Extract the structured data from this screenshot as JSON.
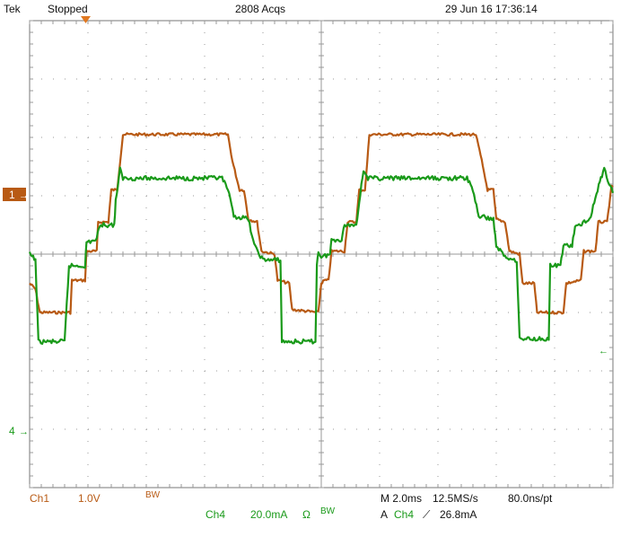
{
  "header": {
    "brand": "Tek",
    "state": "Stopped",
    "acqs": "2808 Acqs",
    "datetime": "29 Jun 16 17:36:14"
  },
  "footer": {
    "ch1_label": "Ch1",
    "ch1_scale": "1.0V",
    "ch1_bw": "BW",
    "ch4_label": "Ch4",
    "ch4_scale": "20.0mA",
    "ch4_term": "Ω",
    "ch4_bw": "BW",
    "timebase": "M 2.0ms",
    "sample_rate": "12.5MS/s",
    "record": "80.0ns/pt",
    "trigger_mode": "A",
    "trigger_src": "Ch4",
    "trigger_slope": "⟋",
    "trigger_level": "26.8mA"
  },
  "colors": {
    "ch1": "#b85a14",
    "ch4": "#1a9a1a",
    "grid": "#999999",
    "frame": "#777777"
  },
  "chart_data": {
    "type": "line",
    "grid": true,
    "x_divisions": 10,
    "y_divisions": 8,
    "x_unit": "ms",
    "xlim": [
      0,
      20
    ],
    "series": [
      {
        "name": "1",
        "ylim": [
          -4,
          4
        ],
        "points": [
          [
            0.0,
            -0.5
          ],
          [
            0.2,
            -0.6
          ],
          [
            0.35,
            -1.0
          ],
          [
            0.5,
            -1.0
          ],
          [
            1.4,
            -1.0
          ],
          [
            1.45,
            -0.45
          ],
          [
            1.9,
            -0.45
          ],
          [
            1.95,
            0.05
          ],
          [
            2.3,
            0.05
          ],
          [
            2.35,
            0.55
          ],
          [
            2.7,
            0.55
          ],
          [
            2.8,
            1.1
          ],
          [
            3.0,
            1.1
          ],
          [
            3.2,
            2.05
          ],
          [
            6.8,
            2.05
          ],
          [
            6.95,
            1.6
          ],
          [
            7.2,
            1.1
          ],
          [
            7.35,
            1.1
          ],
          [
            7.5,
            0.6
          ],
          [
            7.8,
            0.55
          ],
          [
            7.95,
            0.05
          ],
          [
            8.4,
            0.0
          ],
          [
            8.5,
            -0.45
          ],
          [
            8.9,
            -0.5
          ],
          [
            9.0,
            -0.95
          ],
          [
            9.9,
            -1.0
          ],
          [
            10.0,
            -0.5
          ],
          [
            10.1,
            -0.45
          ],
          [
            10.25,
            -0.45
          ],
          [
            10.35,
            0.05
          ],
          [
            10.8,
            0.05
          ],
          [
            10.9,
            0.55
          ],
          [
            11.2,
            0.55
          ],
          [
            11.3,
            1.1
          ],
          [
            11.5,
            1.1
          ],
          [
            11.65,
            2.05
          ],
          [
            15.3,
            2.05
          ],
          [
            15.5,
            1.6
          ],
          [
            15.7,
            1.1
          ],
          [
            15.9,
            1.1
          ],
          [
            16.0,
            0.6
          ],
          [
            16.3,
            0.55
          ],
          [
            16.45,
            0.05
          ],
          [
            16.8,
            0.0
          ],
          [
            16.9,
            -0.5
          ],
          [
            17.3,
            -0.5
          ],
          [
            17.4,
            -1.0
          ],
          [
            18.3,
            -1.0
          ],
          [
            18.4,
            -0.5
          ],
          [
            18.9,
            -0.45
          ],
          [
            19.0,
            0.05
          ],
          [
            19.4,
            0.05
          ],
          [
            19.5,
            0.55
          ],
          [
            19.8,
            0.55
          ],
          [
            19.95,
            1.15
          ],
          [
            20.0,
            1.15
          ]
        ]
      },
      {
        "name": "4",
        "ylim": [
          -3.5,
          4.5
        ],
        "points": [
          [
            0.0,
            0.5
          ],
          [
            0.2,
            0.4
          ],
          [
            0.3,
            -1.0
          ],
          [
            1.2,
            -1.0
          ],
          [
            1.35,
            0.3
          ],
          [
            1.9,
            0.3
          ],
          [
            1.95,
            0.7
          ],
          [
            2.3,
            0.75
          ],
          [
            2.4,
            1.0
          ],
          [
            2.9,
            1.0
          ],
          [
            2.95,
            1.4
          ],
          [
            3.1,
            1.95
          ],
          [
            3.2,
            1.8
          ],
          [
            6.6,
            1.8
          ],
          [
            6.8,
            1.6
          ],
          [
            7.0,
            1.15
          ],
          [
            7.5,
            1.1
          ],
          [
            7.7,
            0.65
          ],
          [
            8.0,
            0.4
          ],
          [
            8.6,
            0.4
          ],
          [
            8.65,
            -1.0
          ],
          [
            9.8,
            -1.0
          ],
          [
            9.85,
            0.3
          ],
          [
            9.9,
            0.55
          ],
          [
            10.0,
            0.45
          ],
          [
            10.3,
            0.5
          ],
          [
            10.35,
            0.75
          ],
          [
            10.7,
            0.75
          ],
          [
            10.8,
            1.0
          ],
          [
            11.2,
            1.0
          ],
          [
            11.3,
            1.4
          ],
          [
            11.45,
            1.95
          ],
          [
            11.6,
            1.8
          ],
          [
            15.0,
            1.8
          ],
          [
            15.2,
            1.6
          ],
          [
            15.4,
            1.15
          ],
          [
            15.9,
            1.1
          ],
          [
            16.0,
            0.65
          ],
          [
            16.3,
            0.45
          ],
          [
            16.7,
            0.4
          ],
          [
            16.8,
            -0.95
          ],
          [
            17.8,
            -0.95
          ],
          [
            17.85,
            0.3
          ],
          [
            18.2,
            0.3
          ],
          [
            18.3,
            0.65
          ],
          [
            18.6,
            0.65
          ],
          [
            18.7,
            0.95
          ],
          [
            19.2,
            1.1
          ],
          [
            19.4,
            1.45
          ],
          [
            19.55,
            1.75
          ],
          [
            19.7,
            1.95
          ],
          [
            20.0,
            1.55
          ]
        ]
      }
    ],
    "markers": {
      "ch1_ground": "1",
      "ch4_ground": "4"
    }
  }
}
